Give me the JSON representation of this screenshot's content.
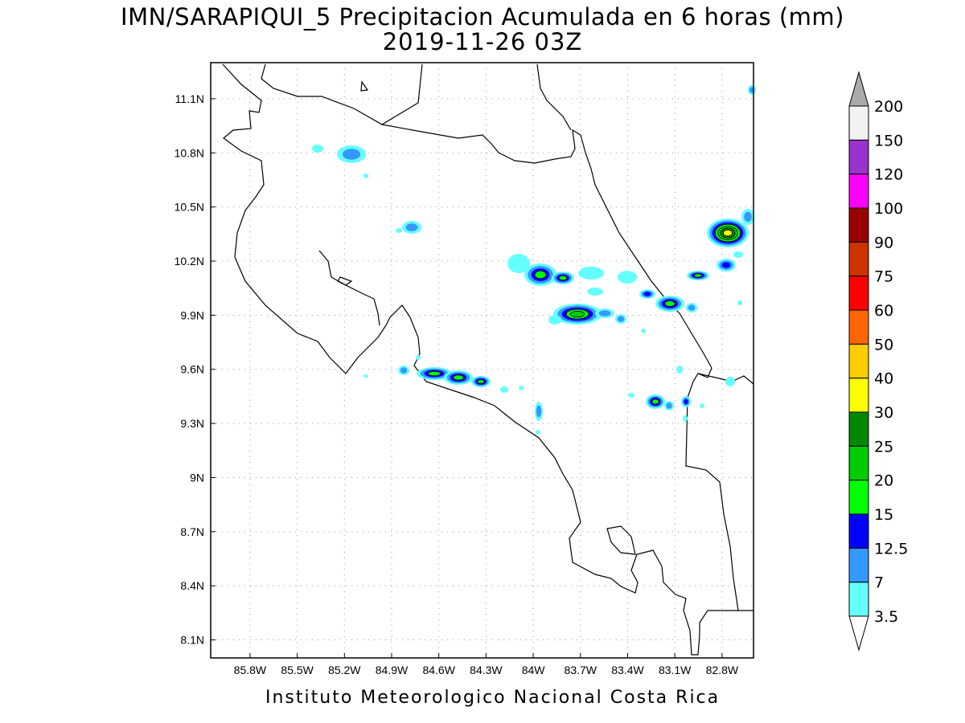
{
  "title": {
    "line1": "IMN/SARAPIQUI_5 Precipitacion Acumulada en 6 horas (mm)",
    "line2": "2019-11-26 03Z"
  },
  "footer": "Instituto Meteorologico Nacional Costa Rica",
  "map": {
    "lon_range": [
      -86.05,
      -82.6
    ],
    "lat_range": [
      8.0,
      11.3
    ],
    "x_ticks": [
      "85.8W",
      "85.5W",
      "85.2W",
      "84.9W",
      "84.6W",
      "84.3W",
      "84W",
      "83.7W",
      "83.4W",
      "83.1W",
      "82.8W"
    ],
    "y_ticks": [
      "11.1N",
      "10.8N",
      "10.5N",
      "10.2N",
      "9.9N",
      "9.6N",
      "9.3N",
      "9N",
      "8.7N",
      "8.4N",
      "8.1N"
    ],
    "grid": "dotted"
  },
  "colorbar": {
    "labels": [
      "3.5",
      "7",
      "12.5",
      "15",
      "20",
      "25",
      "30",
      "40",
      "50",
      "60",
      "75",
      "90",
      "100",
      "120",
      "150",
      "200"
    ],
    "colors": [
      "#66ffff",
      "#3399ff",
      "#0000ff",
      "#00ff00",
      "#00cc00",
      "#008800",
      "#ffff00",
      "#ffcc00",
      "#ff6600",
      "#ff0000",
      "#cc3300",
      "#990000",
      "#ff00ff",
      "#9933cc",
      "#f2f2f2",
      "#aaaaaa"
    ]
  }
}
